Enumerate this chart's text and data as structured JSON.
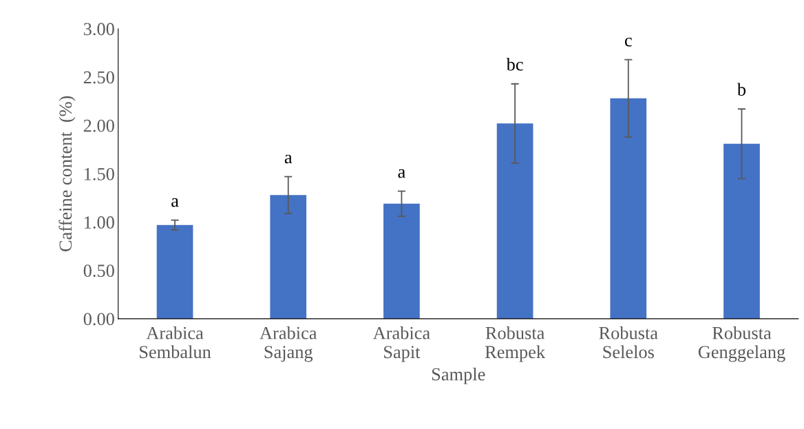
{
  "chart_data": {
    "type": "bar",
    "categories": [
      "Arabica\nSembalun",
      "Arabica\nSajang",
      "Arabica\nSapit",
      "Robusta\nRempek",
      "Robusta\nSelelos",
      "Robusta\nGenggelang"
    ],
    "values": [
      0.97,
      1.28,
      1.19,
      2.02,
      2.28,
      1.81
    ],
    "errors": [
      0.05,
      0.19,
      0.13,
      0.41,
      0.4,
      0.36
    ],
    "color": "#4472c4",
    "xlabel": "Sample",
    "ylabel": "Caffeine content  (%)",
    "ylim": [
      0,
      3
    ],
    "yticks": [
      {
        "value": 0,
        "label": "0.00"
      },
      {
        "value": 0.5,
        "label": "0.50"
      },
      {
        "value": 1,
        "label": "1.00"
      },
      {
        "value": 1.5,
        "label": "1.50"
      },
      {
        "value": 2,
        "label": "2.00"
      },
      {
        "value": 2.5,
        "label": "2.50"
      },
      {
        "value": 3,
        "label": "3.00"
      }
    ],
    "grid": false,
    "legend": false,
    "annotations": [
      "a",
      "a",
      "a",
      "bc",
      "c",
      "b"
    ]
  }
}
